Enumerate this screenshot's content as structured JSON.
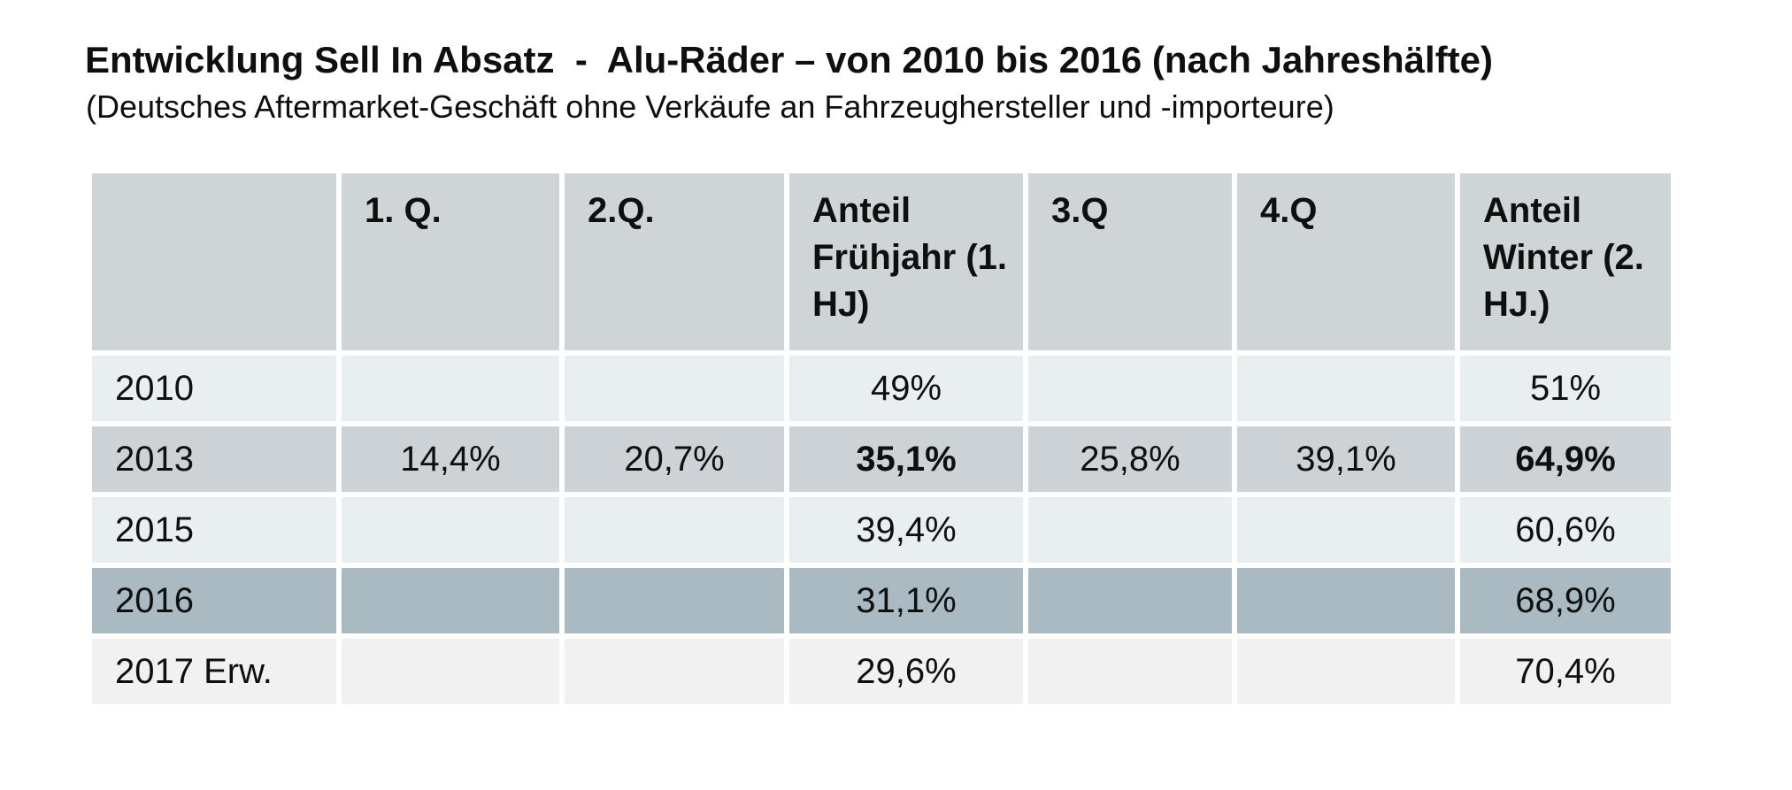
{
  "title": "Entwicklung Sell In Absatz  -  Alu-Räder – von 2010 bis 2016 (nach Jahreshälfte)",
  "subtitle": "(Deutsches Aftermarket-Geschäft ohne Verkäufe an Fahrzeughersteller und -importeure)",
  "chart_data": {
    "type": "table",
    "title": "Entwicklung Sell In Absatz - Alu-Räder – von 2010 bis 2016 (nach Jahreshälfte)",
    "columns": [
      "",
      "1. Q.",
      "2.Q.",
      "Anteil Frühjahr (1. HJ)",
      "3.Q",
      "4.Q",
      "Anteil Winter (2. HJ.)"
    ],
    "rows": [
      {
        "label": "2010",
        "values": [
          "",
          "",
          "49%",
          "",
          "",
          "51%"
        ],
        "emphasis": [],
        "tone": "light"
      },
      {
        "label": "2013",
        "values": [
          "14,4%",
          "20,7%",
          "35,1%",
          "25,8%",
          "39,1%",
          "64,9%"
        ],
        "emphasis": [
          2,
          5
        ],
        "tone": "medium"
      },
      {
        "label": "2015",
        "values": [
          "",
          "",
          "39,4%",
          "",
          "",
          "60,6%"
        ],
        "emphasis": [],
        "tone": "light"
      },
      {
        "label": "2016",
        "values": [
          "",
          "",
          "31,1%",
          "",
          "",
          "68,9%"
        ],
        "emphasis": [],
        "tone": "dark"
      },
      {
        "label": "2017 Erw.",
        "values": [
          "",
          "",
          "29,6%",
          "",
          "",
          "70,4%"
        ],
        "emphasis": [],
        "tone": "pale"
      }
    ]
  },
  "colors": {
    "header_bg": "#cfd4d7",
    "row_light": "#e9eef1",
    "row_medium": "#cdd2d6",
    "row_dark": "#a9bac2",
    "row_pale": "#f0f1f0",
    "text": "#0f0f0f",
    "page_bg": "#ffffff"
  }
}
